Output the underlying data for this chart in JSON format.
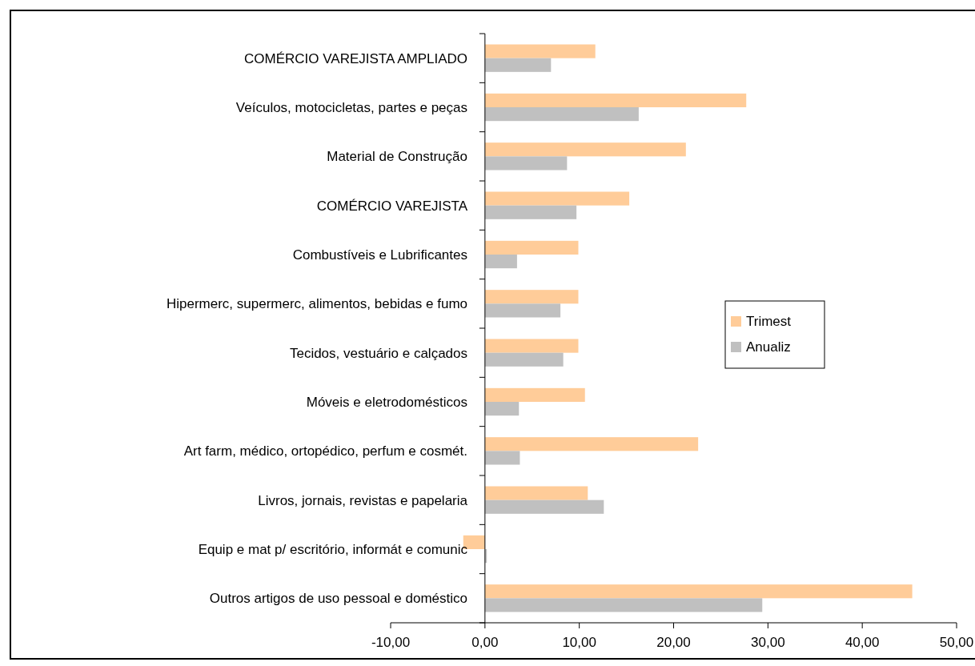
{
  "chart_data": {
    "type": "bar",
    "orientation": "horizontal",
    "categories": [
      "COMÉRCIO VAREJISTA AMPLIADO",
      "Veículos, motocicletas, partes e peças",
      "Material de Construção",
      "COMÉRCIO VAREJISTA",
      "Combustíveis e Lubrificantes",
      "Hipermerc, supermerc, alimentos, bebidas e fumo",
      "Tecidos, vestuário e calçados",
      "Móveis e eletrodomésticos",
      "Art farm, médico, ortopédico, perfum e cosmét.",
      "Livros, jornais, revistas e papelaria",
      "Equip e mat p/ escritório, informát e comunic",
      "Outros artigos de uso pessoal e doméstico"
    ],
    "series": [
      {
        "name": "Trimest",
        "color": "#ffcc99",
        "values": [
          11.7,
          27.7,
          21.3,
          15.3,
          9.9,
          9.9,
          9.9,
          10.6,
          22.6,
          10.9,
          -2.3,
          45.3
        ]
      },
      {
        "name": "Anualiz",
        "color": "#c0c0c0",
        "values": [
          7.0,
          16.3,
          8.7,
          9.7,
          3.4,
          8.0,
          8.3,
          3.6,
          3.7,
          12.6,
          0.2,
          29.4
        ]
      }
    ],
    "xlim": [
      -10,
      50
    ],
    "xticks": [
      {
        "value": -10,
        "label": "-10,00"
      },
      {
        "value": 0,
        "label": "0,00"
      },
      {
        "value": 10,
        "label": "10,00"
      },
      {
        "value": 20,
        "label": "20,00"
      },
      {
        "value": 30,
        "label": "30,00"
      },
      {
        "value": 40,
        "label": "40,00"
      },
      {
        "value": 50,
        "label": "50,00"
      }
    ],
    "grid": false,
    "legend": "right"
  }
}
